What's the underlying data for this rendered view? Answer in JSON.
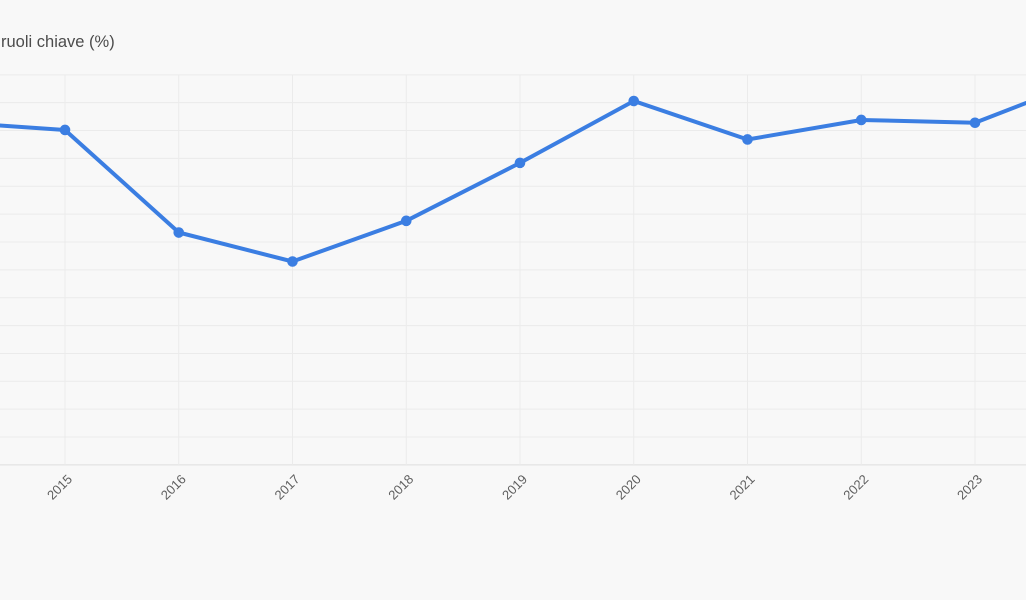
{
  "chart_data": {
    "type": "line",
    "title": "ruoli chiave (%)",
    "categories": [
      2015,
      2016,
      2017,
      2018,
      2019,
      2020,
      2021,
      2022,
      2023
    ],
    "values": [
      60.1,
      41.7,
      36.5,
      43.8,
      54.2,
      65.3,
      58.4,
      61.9,
      61.4
    ],
    "offscreen_points": {
      "2014": 61.5,
      "2024": 69.3
    },
    "xlabel": "",
    "ylabel": "",
    "ylim": [
      0,
      70
    ],
    "ytick_step": 5,
    "grid": true,
    "legend": "none",
    "x_axis_labels_rotation_deg": -45,
    "colors": {
      "line": "#3b7ee2",
      "marker": "#3b7ee2",
      "background": "#f8f8f8",
      "gridline": "#ebebeb",
      "axis_line": "#dfdfdf",
      "tick_label": "#5e5e5e",
      "title": "#4c4c4c"
    }
  }
}
